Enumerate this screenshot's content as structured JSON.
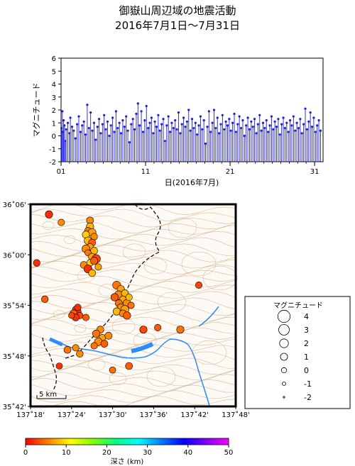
{
  "title": {
    "line1": "御嶽山周辺域の地震活動",
    "line2": "2016年7月1日～7月31日"
  },
  "chart_data": [
    {
      "type": "stem",
      "ylabel": "マグニチュード",
      "xlabel": "日(2016年7月)",
      "ylim": [
        -2,
        6
      ],
      "yticks": [
        "6",
        "5",
        "4",
        "3",
        "2",
        "1",
        "0",
        "-1",
        "-2"
      ],
      "xlim": [
        1,
        32
      ],
      "xticks": [
        "01",
        "11",
        "21",
        "31"
      ],
      "series_color": "#1a1aff",
      "points": [
        [
          1.05,
          0.6
        ],
        [
          1.15,
          1.9
        ],
        [
          1.2,
          0.3
        ],
        [
          1.3,
          1.2
        ],
        [
          1.4,
          0.8
        ],
        [
          1.5,
          -0.4
        ],
        [
          1.6,
          0.5
        ],
        [
          1.8,
          1.0
        ],
        [
          2.0,
          0.2
        ],
        [
          2.1,
          1.4
        ],
        [
          2.3,
          0.7
        ],
        [
          2.5,
          0.4
        ],
        [
          2.7,
          -0.2
        ],
        [
          2.9,
          0.9
        ],
        [
          3.1,
          1.5
        ],
        [
          3.3,
          0.3
        ],
        [
          3.5,
          0.8
        ],
        [
          3.7,
          1.1
        ],
        [
          3.9,
          0.1
        ],
        [
          4.1,
          2.4
        ],
        [
          4.3,
          0.6
        ],
        [
          4.5,
          1.8
        ],
        [
          4.7,
          0.4
        ],
        [
          4.9,
          1.0
        ],
        [
          5.1,
          -0.3
        ],
        [
          5.3,
          0.7
        ],
        [
          5.5,
          1.3
        ],
        [
          5.7,
          0.2
        ],
        [
          5.9,
          0.9
        ],
        [
          6.1,
          1.6
        ],
        [
          6.3,
          0.5
        ],
        [
          6.5,
          1.1
        ],
        [
          6.7,
          0.0
        ],
        [
          6.9,
          0.8
        ],
        [
          7.1,
          1.4
        ],
        [
          7.3,
          0.3
        ],
        [
          7.5,
          1.9
        ],
        [
          7.7,
          0.6
        ],
        [
          7.9,
          1.0
        ],
        [
          8.1,
          0.2
        ],
        [
          8.3,
          1.2
        ],
        [
          8.5,
          0.7
        ],
        [
          8.7,
          1.5
        ],
        [
          8.9,
          0.4
        ],
        [
          9.1,
          -0.5
        ],
        [
          9.3,
          0.9
        ],
        [
          9.5,
          1.3
        ],
        [
          9.7,
          0.5
        ],
        [
          9.9,
          1.7
        ],
        [
          10.1,
          2.5
        ],
        [
          10.3,
          0.8
        ],
        [
          10.5,
          1.9
        ],
        [
          10.7,
          0.3
        ],
        [
          10.9,
          1.2
        ],
        [
          11.1,
          2.3
        ],
        [
          11.3,
          0.6
        ],
        [
          11.5,
          1.0
        ],
        [
          11.7,
          1.4
        ],
        [
          11.9,
          0.2
        ],
        [
          12.1,
          1.1
        ],
        [
          12.3,
          0.7
        ],
        [
          12.5,
          1.6
        ],
        [
          12.7,
          0.4
        ],
        [
          12.9,
          0.9
        ],
        [
          13.1,
          1.3
        ],
        [
          13.3,
          -0.4
        ],
        [
          13.5,
          0.8
        ],
        [
          13.7,
          1.5
        ],
        [
          13.9,
          0.3
        ],
        [
          14.1,
          1.0
        ],
        [
          14.3,
          0.6
        ],
        [
          14.5,
          1.2
        ],
        [
          14.7,
          0.5
        ],
        [
          14.9,
          1.8
        ],
        [
          15.1,
          0.2
        ],
        [
          15.3,
          0.9
        ],
        [
          15.5,
          1.4
        ],
        [
          15.7,
          0.7
        ],
        [
          15.9,
          1.1
        ],
        [
          16.1,
          2.0
        ],
        [
          16.3,
          0.4
        ],
        [
          16.5,
          1.3
        ],
        [
          16.7,
          0.6
        ],
        [
          16.9,
          1.0
        ],
        [
          17.1,
          0.1
        ],
        [
          17.3,
          0.8
        ],
        [
          17.5,
          1.5
        ],
        [
          17.7,
          0.5
        ],
        [
          17.9,
          1.2
        ],
        [
          18.1,
          -0.6
        ],
        [
          18.3,
          0.7
        ],
        [
          18.5,
          1.9
        ],
        [
          18.7,
          0.3
        ],
        [
          18.9,
          1.0
        ],
        [
          19.1,
          2.0
        ],
        [
          19.3,
          0.6
        ],
        [
          19.5,
          1.4
        ],
        [
          19.7,
          0.2
        ],
        [
          19.9,
          0.9
        ],
        [
          20.1,
          1.6
        ],
        [
          20.3,
          0.5
        ],
        [
          20.5,
          1.1
        ],
        [
          20.7,
          0.8
        ],
        [
          20.9,
          1.3
        ],
        [
          21.1,
          0.4
        ],
        [
          21.3,
          1.0
        ],
        [
          21.5,
          1.7
        ],
        [
          21.7,
          0.3
        ],
        [
          21.9,
          0.9
        ],
        [
          22.1,
          1.5
        ],
        [
          22.3,
          0.6
        ],
        [
          22.5,
          1.2
        ],
        [
          22.7,
          0.0
        ],
        [
          22.9,
          0.8
        ],
        [
          23.1,
          1.4
        ],
        [
          23.3,
          0.5
        ],
        [
          23.5,
          1.1
        ],
        [
          23.7,
          0.7
        ],
        [
          23.9,
          1.3
        ],
        [
          24.1,
          0.2
        ],
        [
          24.3,
          0.9
        ],
        [
          24.5,
          1.6
        ],
        [
          24.7,
          0.4
        ],
        [
          24.9,
          1.0
        ],
        [
          25.1,
          0.6
        ],
        [
          25.3,
          1.2
        ],
        [
          25.5,
          0.3
        ],
        [
          25.7,
          0.8
        ],
        [
          25.9,
          1.5
        ],
        [
          26.1,
          0.5
        ],
        [
          26.3,
          1.1
        ],
        [
          26.5,
          0.7
        ],
        [
          26.7,
          1.3
        ],
        [
          26.9,
          0.1
        ],
        [
          27.1,
          0.9
        ],
        [
          27.3,
          1.4
        ],
        [
          27.5,
          0.6
        ],
        [
          27.7,
          1.0
        ],
        [
          27.9,
          0.3
        ],
        [
          28.1,
          1.2
        ],
        [
          28.3,
          0.8
        ],
        [
          28.5,
          1.5
        ],
        [
          28.7,
          0.4
        ],
        [
          28.9,
          1.0
        ],
        [
          29.1,
          0.6
        ],
        [
          29.3,
          1.3
        ],
        [
          29.5,
          0.2
        ],
        [
          29.7,
          0.9
        ],
        [
          29.9,
          2.1
        ],
        [
          30.1,
          0.5
        ],
        [
          30.3,
          1.1
        ],
        [
          30.5,
          1.8
        ],
        [
          30.7,
          0.7
        ],
        [
          30.9,
          1.4
        ],
        [
          31.1,
          0.3
        ],
        [
          31.3,
          0.8
        ],
        [
          31.5,
          1.2
        ],
        [
          31.7,
          0.4
        ]
      ]
    },
    {
      "type": "scatter",
      "lat_ticks": [
        "36˚06'",
        "36˚00'",
        "35˚54'",
        "35˚48'",
        "35˚42'"
      ],
      "lon_ticks": [
        "137˚18'",
        "137˚24'",
        "137˚30'",
        "137˚36'",
        "137˚42'",
        "137˚48'"
      ],
      "scale_label": "5 km",
      "points": [
        [
          0.29,
          0.08,
          1.0,
          6
        ],
        [
          0.29,
          0.11,
          1.2,
          8
        ],
        [
          0.28,
          0.13,
          0.8,
          5
        ],
        [
          0.3,
          0.14,
          1.5,
          7
        ],
        [
          0.27,
          0.15,
          1.1,
          9
        ],
        [
          0.31,
          0.16,
          0.9,
          6
        ],
        [
          0.28,
          0.18,
          1.3,
          8
        ],
        [
          0.3,
          0.19,
          1.0,
          4
        ],
        [
          0.29,
          0.21,
          0.7,
          7
        ],
        [
          0.27,
          0.22,
          1.4,
          6
        ],
        [
          0.31,
          0.23,
          1.0,
          8
        ],
        [
          0.28,
          0.24,
          0.6,
          5
        ],
        [
          0.3,
          0.26,
          1.1,
          7
        ],
        [
          0.32,
          0.27,
          1.8,
          3
        ],
        [
          0.29,
          0.29,
          0.9,
          9
        ],
        [
          0.31,
          0.28,
          1.2,
          4
        ],
        [
          0.26,
          0.3,
          1.0,
          6
        ],
        [
          0.33,
          0.31,
          0.8,
          7
        ],
        [
          0.28,
          0.32,
          1.5,
          2
        ],
        [
          0.3,
          0.34,
          1.0,
          8
        ],
        [
          0.22,
          0.52,
          0.6,
          3
        ],
        [
          0.23,
          0.53,
          0.9,
          2
        ],
        [
          0.21,
          0.54,
          1.1,
          4
        ],
        [
          0.24,
          0.55,
          0.7,
          3
        ],
        [
          0.22,
          0.56,
          1.0,
          2
        ],
        [
          0.2,
          0.55,
          0.5,
          3
        ],
        [
          0.23,
          0.51,
          0.8,
          2
        ],
        [
          0.42,
          0.4,
          1.6,
          5
        ],
        [
          0.44,
          0.42,
          1.2,
          7
        ],
        [
          0.43,
          0.45,
          2.0,
          6
        ],
        [
          0.46,
          0.44,
          1.0,
          8
        ],
        [
          0.41,
          0.46,
          1.3,
          4
        ],
        [
          0.45,
          0.47,
          0.9,
          7
        ],
        [
          0.47,
          0.49,
          1.4,
          6
        ],
        [
          0.43,
          0.49,
          1.0,
          5
        ],
        [
          0.48,
          0.46,
          0.8,
          8
        ],
        [
          0.44,
          0.51,
          1.1,
          6
        ],
        [
          0.46,
          0.52,
          1.5,
          7
        ],
        [
          0.49,
          0.5,
          0.7,
          5
        ],
        [
          0.42,
          0.53,
          1.2,
          8
        ],
        [
          0.45,
          0.54,
          1.0,
          6
        ],
        [
          0.47,
          0.55,
          1.3,
          4
        ],
        [
          0.34,
          0.62,
          1.0,
          6
        ],
        [
          0.32,
          0.64,
          1.2,
          5
        ],
        [
          0.35,
          0.66,
          0.9,
          7
        ],
        [
          0.33,
          0.68,
          1.4,
          6
        ],
        [
          0.36,
          0.69,
          1.0,
          4
        ],
        [
          0.31,
          0.7,
          0.8,
          5
        ],
        [
          0.38,
          0.65,
          1.1,
          6
        ],
        [
          0.22,
          0.71,
          0.8,
          6
        ],
        [
          0.18,
          0.72,
          1.0,
          5
        ],
        [
          0.24,
          0.74,
          0.9,
          6
        ],
        [
          0.55,
          0.62,
          1.2,
          3
        ],
        [
          0.62,
          0.61,
          0.8,
          4
        ],
        [
          0.09,
          0.05,
          1.2,
          2
        ],
        [
          0.15,
          0.09,
          0.8,
          6
        ],
        [
          0.07,
          0.47,
          0.9,
          4
        ],
        [
          0.14,
          0.8,
          0.6,
          2
        ],
        [
          0.4,
          0.82,
          0.6,
          5
        ],
        [
          0.48,
          0.8,
          1.0,
          4
        ],
        [
          0.73,
          0.62,
          1.2,
          5
        ],
        [
          0.82,
          0.4,
          0.8,
          3
        ],
        [
          0.03,
          0.29,
          0.9,
          2
        ],
        [
          0.27,
          0.56,
          0.8,
          4
        ]
      ]
    }
  ],
  "legend": {
    "title": "マグニチュード",
    "items": [
      {
        "label": "4",
        "magnitude": 4
      },
      {
        "label": "3",
        "magnitude": 3
      },
      {
        "label": "2",
        "magnitude": 2
      },
      {
        "label": "1",
        "magnitude": 1
      },
      {
        "label": "0",
        "magnitude": 0
      },
      {
        "label": "-1",
        "magnitude": -1
      },
      {
        "label": "-2",
        "magnitude": -2
      }
    ]
  },
  "colorbar": {
    "label": "深さ (km)",
    "ticks": [
      "0",
      "10",
      "20",
      "30",
      "40",
      "50"
    ],
    "range": [
      0,
      50
    ],
    "colors": [
      "#ff0000",
      "#ff8000",
      "#ffff00",
      "#80ff00",
      "#00ff80",
      "#00ffff",
      "#0080ff",
      "#0000ff",
      "#8000ff",
      "#ff00ff"
    ]
  }
}
